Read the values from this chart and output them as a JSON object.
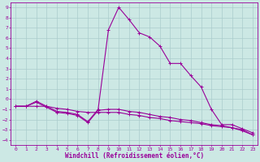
{
  "xlabel": "Windchill (Refroidissement éolien,°C)",
  "bg_color": "#cce8e4",
  "grid_color": "#aacccc",
  "line_color": "#990099",
  "x": [
    0,
    1,
    2,
    3,
    4,
    5,
    6,
    7,
    8,
    9,
    10,
    11,
    12,
    13,
    14,
    15,
    16,
    17,
    18,
    19,
    20,
    21,
    22,
    23
  ],
  "line1": [
    -0.7,
    -0.7,
    -0.2,
    -0.7,
    -1.2,
    -1.3,
    -1.5,
    -2.2,
    -1.0,
    6.8,
    9.0,
    7.8,
    6.5,
    6.1,
    5.2,
    3.5,
    3.5,
    2.3,
    1.2,
    -1.0,
    -2.5,
    -2.5,
    -2.9,
    -3.3
  ],
  "line2": [
    -0.7,
    -0.7,
    -0.3,
    -0.8,
    -1.3,
    -1.4,
    -1.6,
    -2.3,
    -1.1,
    -1.0,
    -1.0,
    -1.2,
    -1.3,
    -1.5,
    -1.7,
    -1.8,
    -2.0,
    -2.1,
    -2.3,
    -2.5,
    -2.6,
    -2.8,
    -3.1,
    -3.5
  ],
  "line3": [
    -0.7,
    -0.7,
    -0.7,
    -0.7,
    -0.9,
    -1.0,
    -1.2,
    -1.3,
    -1.3,
    -1.3,
    -1.3,
    -1.5,
    -1.6,
    -1.8,
    -1.9,
    -2.1,
    -2.2,
    -2.3,
    -2.4,
    -2.6,
    -2.7,
    -2.8,
    -3.0,
    -3.5
  ],
  "ylim": [
    -4.5,
    9.5
  ],
  "xlim": [
    -0.5,
    23.5
  ],
  "yticks": [
    -4,
    -3,
    -2,
    -1,
    0,
    1,
    2,
    3,
    4,
    5,
    6,
    7,
    8,
    9
  ],
  "xticks": [
    0,
    1,
    2,
    3,
    4,
    5,
    6,
    7,
    8,
    9,
    10,
    11,
    12,
    13,
    14,
    15,
    16,
    17,
    18,
    19,
    20,
    21,
    22,
    23
  ],
  "tick_fontsize": 4.5,
  "xlabel_fontsize": 5.5,
  "linewidth": 0.8,
  "markersize": 2.5,
  "markeredgewidth": 0.7
}
